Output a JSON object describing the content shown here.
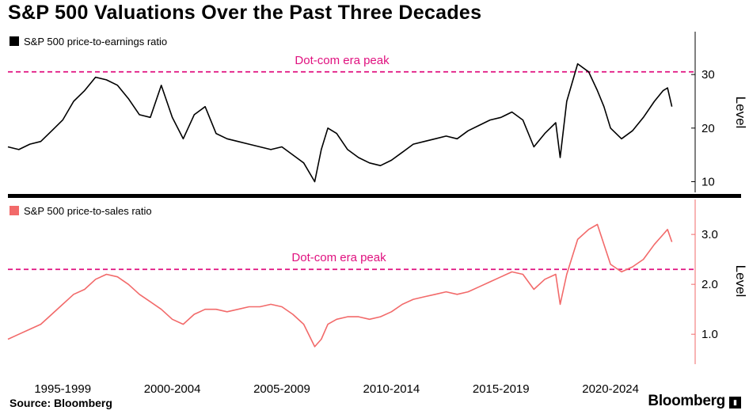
{
  "title": "S&P 500 Valuations Over the Past Three Decades",
  "source": "Source: Bloomberg",
  "brand": "Bloomberg",
  "colors": {
    "pe_line": "#000000",
    "ps_line": "#f26a6a",
    "peak_line": "#e0117f",
    "axis": "#000000"
  },
  "chart_data": [
    {
      "type": "line",
      "title": "S&P 500 price-to-earnings ratio",
      "legend": "S&P 500 price-to-earnings ratio",
      "ylabel": "Level",
      "ylim": [
        8,
        38
      ],
      "yticks": [
        10,
        20,
        30
      ],
      "ytick_labels": [
        "10",
        "20",
        "30"
      ],
      "reference_line": {
        "value": 30.5,
        "label": "Dot-com era peak"
      },
      "x": [
        1995.0,
        1995.5,
        1996.0,
        1996.5,
        1997.0,
        1997.5,
        1998.0,
        1998.5,
        1999.0,
        1999.5,
        2000.0,
        2000.5,
        2001.0,
        2001.5,
        2002.0,
        2002.5,
        2003.0,
        2003.5,
        2004.0,
        2004.5,
        2005.0,
        2005.5,
        2006.0,
        2006.5,
        2007.0,
        2007.5,
        2008.0,
        2008.5,
        2009.0,
        2009.3,
        2009.6,
        2010.0,
        2010.5,
        2011.0,
        2011.5,
        2012.0,
        2012.5,
        2013.0,
        2013.5,
        2014.0,
        2014.5,
        2015.0,
        2015.5,
        2016.0,
        2016.5,
        2017.0,
        2017.5,
        2018.0,
        2018.5,
        2019.0,
        2019.5,
        2020.0,
        2020.2,
        2020.5,
        2021.0,
        2021.5,
        2021.9,
        2022.2,
        2022.5,
        2023.0,
        2023.5,
        2024.0,
        2024.5,
        2024.9,
        2025.1,
        2025.3
      ],
      "values": [
        16.5,
        16.0,
        17.0,
        17.5,
        19.5,
        21.5,
        25.0,
        27.0,
        29.5,
        29.0,
        28.0,
        25.5,
        22.5,
        22.0,
        28.0,
        22.0,
        18.0,
        22.5,
        24.0,
        19.0,
        18.0,
        17.5,
        17.0,
        16.5,
        16.0,
        16.5,
        15.0,
        13.5,
        10.0,
        16.0,
        20.0,
        19.0,
        16.0,
        14.5,
        13.5,
        13.0,
        14.0,
        15.5,
        17.0,
        17.5,
        18.0,
        18.5,
        18.0,
        19.5,
        20.5,
        21.5,
        22.0,
        23.0,
        21.5,
        16.5,
        19.0,
        21.0,
        14.5,
        25.0,
        32.0,
        30.5,
        27.0,
        24.0,
        20.0,
        18.0,
        19.5,
        22.0,
        25.0,
        27.0,
        27.5,
        24.0
      ]
    },
    {
      "type": "line",
      "title": "S&P 500 price-to-sales ratio",
      "legend": "S&P 500 price-to-sales ratio",
      "ylabel": "Level",
      "ylim": [
        0.4,
        3.7
      ],
      "yticks": [
        1.0,
        2.0,
        3.0
      ],
      "ytick_labels": [
        "1.0",
        "2.0",
        "3.0"
      ],
      "reference_line": {
        "value": 2.3,
        "label": "Dot-com era peak"
      },
      "x": [
        1995.0,
        1995.5,
        1996.0,
        1996.5,
        1997.0,
        1997.5,
        1998.0,
        1998.5,
        1999.0,
        1999.5,
        2000.0,
        2000.5,
        2001.0,
        2001.5,
        2002.0,
        2002.5,
        2003.0,
        2003.5,
        2004.0,
        2004.5,
        2005.0,
        2005.5,
        2006.0,
        2006.5,
        2007.0,
        2007.5,
        2008.0,
        2008.5,
        2009.0,
        2009.3,
        2009.6,
        2010.0,
        2010.5,
        2011.0,
        2011.5,
        2012.0,
        2012.5,
        2013.0,
        2013.5,
        2014.0,
        2014.5,
        2015.0,
        2015.5,
        2016.0,
        2016.5,
        2017.0,
        2017.5,
        2018.0,
        2018.5,
        2019.0,
        2019.5,
        2020.0,
        2020.2,
        2020.5,
        2021.0,
        2021.5,
        2021.9,
        2022.2,
        2022.5,
        2023.0,
        2023.5,
        2024.0,
        2024.5,
        2024.9,
        2025.1,
        2025.3
      ],
      "values": [
        0.9,
        1.0,
        1.1,
        1.2,
        1.4,
        1.6,
        1.8,
        1.9,
        2.1,
        2.2,
        2.15,
        2.0,
        1.8,
        1.65,
        1.5,
        1.3,
        1.2,
        1.4,
        1.5,
        1.5,
        1.45,
        1.5,
        1.55,
        1.55,
        1.6,
        1.55,
        1.4,
        1.2,
        0.75,
        0.9,
        1.2,
        1.3,
        1.35,
        1.35,
        1.3,
        1.35,
        1.45,
        1.6,
        1.7,
        1.75,
        1.8,
        1.85,
        1.8,
        1.85,
        1.95,
        2.05,
        2.15,
        2.25,
        2.2,
        1.9,
        2.1,
        2.2,
        1.6,
        2.2,
        2.9,
        3.1,
        3.2,
        2.8,
        2.4,
        2.25,
        2.35,
        2.5,
        2.8,
        3.0,
        3.1,
        2.85
      ]
    }
  ],
  "x_axis": {
    "xlim": [
      1995,
      2026
    ],
    "tick_years": [
      1995.5,
      2000.5,
      2005.5,
      2010.5,
      2015.5,
      2020.5
    ],
    "tick_labels": [
      "1995-1999",
      "2000-2004",
      "2005-2009",
      "2010-2014",
      "2015-2019",
      "2020-2024"
    ]
  }
}
